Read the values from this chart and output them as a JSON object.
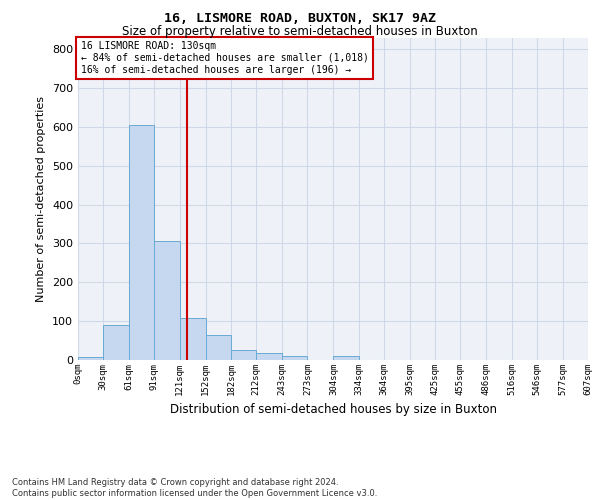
{
  "title": "16, LISMORE ROAD, BUXTON, SK17 9AZ",
  "subtitle": "Size of property relative to semi-detached houses in Buxton",
  "xlabel": "Distribution of semi-detached houses by size in Buxton",
  "ylabel": "Number of semi-detached properties",
  "footer_line1": "Contains HM Land Registry data © Crown copyright and database right 2024.",
  "footer_line2": "Contains public sector information licensed under the Open Government Licence v3.0.",
  "bar_edges": [
    0,
    30,
    61,
    91,
    121,
    152,
    182,
    212,
    243,
    273,
    304,
    334,
    364,
    395,
    425,
    455,
    486,
    516,
    546,
    577,
    607
  ],
  "bar_heights": [
    7,
    90,
    605,
    307,
    109,
    65,
    27,
    17,
    10,
    0,
    11,
    0,
    0,
    0,
    0,
    0,
    0,
    0,
    0,
    0
  ],
  "bar_color": "#c5d8f0",
  "bar_edgecolor": "#6aaad4",
  "grid_color": "#d0d8e8",
  "background_color": "#eef2f8",
  "property_size": 130,
  "red_line_color": "#cc0000",
  "annotation_text_line1": "16 LISMORE ROAD: 130sqm",
  "annotation_text_line2": "← 84% of semi-detached houses are smaller (1,018)",
  "annotation_text_line3": "16% of semi-detached houses are larger (196) →",
  "annotation_box_color": "#ffffff",
  "annotation_box_edgecolor": "#cc0000",
  "ylim": [
    0,
    830
  ],
  "yticks": [
    0,
    100,
    200,
    300,
    400,
    500,
    600,
    700,
    800
  ],
  "tick_labels": [
    "0sqm",
    "30sqm",
    "61sqm",
    "91sqm",
    "121sqm",
    "152sqm",
    "182sqm",
    "212sqm",
    "243sqm",
    "273sqm",
    "304sqm",
    "334sqm",
    "364sqm",
    "395sqm",
    "425sqm",
    "455sqm",
    "486sqm",
    "516sqm",
    "546sqm",
    "577sqm",
    "607sqm"
  ]
}
